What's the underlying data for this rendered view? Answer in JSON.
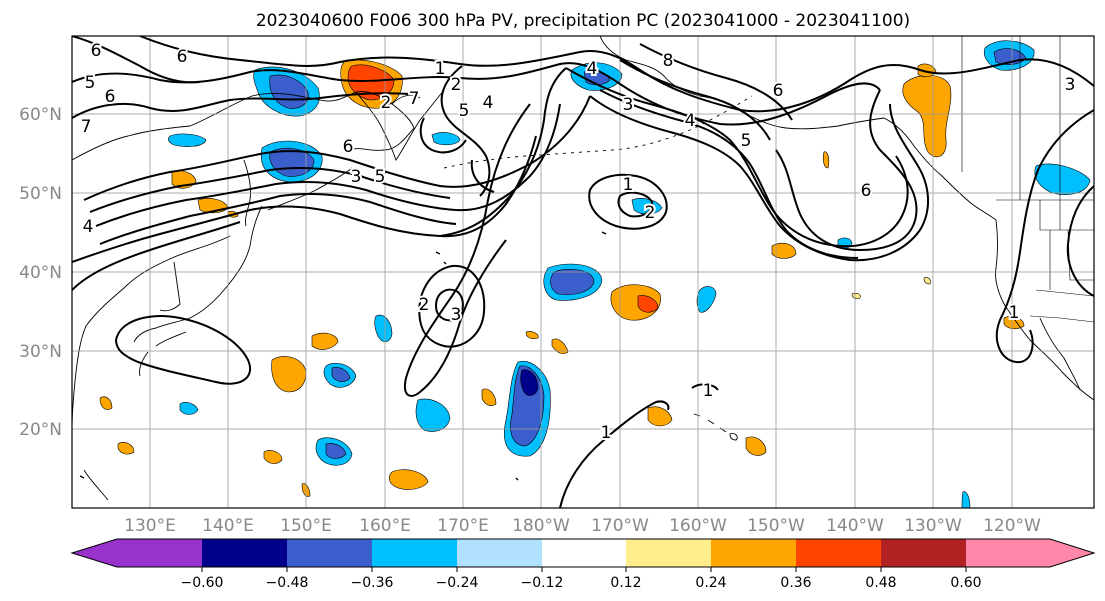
{
  "title": "2023040600 F006 300 hPa PV, precipitation PC (2023041000 - 2023041100)",
  "map": {
    "lat_labels": [
      "60°N",
      "50°N",
      "40°N",
      "30°N",
      "20°N"
    ],
    "lon_labels": [
      "130°E",
      "140°E",
      "150°E",
      "160°E",
      "170°E",
      "180°W",
      "170°W",
      "160°W",
      "150°W",
      "140°W",
      "130°W",
      "120°W"
    ],
    "contour_labels": [
      "6",
      "6",
      "5",
      "6",
      "7",
      "1",
      "2",
      "2",
      "7",
      "5",
      "4",
      "6",
      "5",
      "3",
      "4",
      "8",
      "3",
      "4",
      "5",
      "6",
      "6",
      "1",
      "2",
      "2",
      "3",
      "1",
      "1",
      "1",
      "3",
      "4"
    ]
  },
  "colorbar": {
    "tick_labels": [
      "−0.60",
      "−0.48",
      "−0.36",
      "−0.24",
      "−0.12",
      "0.12",
      "0.24",
      "0.36",
      "0.48",
      "0.60"
    ],
    "colors": [
      "#9932cc",
      "#00008b",
      "#3a5fcd",
      "#00bfff",
      "#b0e2ff",
      "#ffffff",
      "#ffec8b",
      "#ffa500",
      "#ff4500",
      "#b22222",
      "#ff88aa"
    ]
  },
  "colors": {
    "neg_light": "#00bfff",
    "neg_mid": "#3a5fcd",
    "neg_dark": "#00008b",
    "pos_light": "#ffec8b",
    "pos_mid": "#ffa500",
    "pos_strong": "#ff4500",
    "contour": "#000000",
    "grid": "#999999"
  }
}
